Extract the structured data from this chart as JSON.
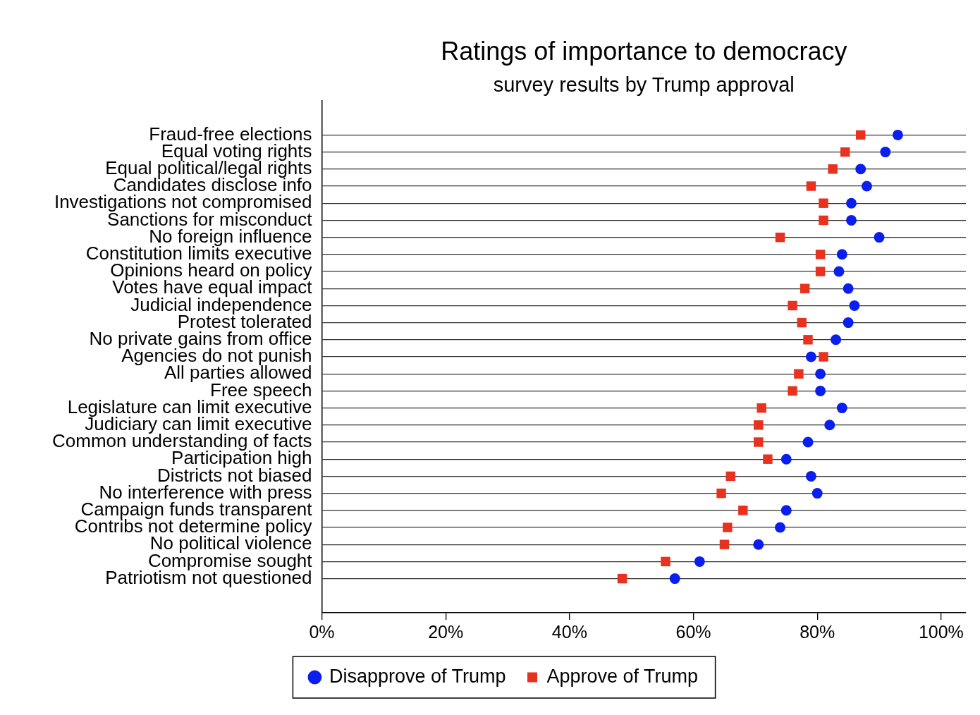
{
  "chart_data": {
    "type": "scatter",
    "title": "Ratings of importance to democracy",
    "subtitle": "survey results by Trump approval",
    "categories": [
      "Fraud-free elections",
      "Equal voting rights",
      "Equal political/legal rights",
      "Candidates disclose info",
      "Investigations not compromised",
      "Sanctions for misconduct",
      "No foreign influence",
      "Constitution limits executive",
      "Opinions heard on policy",
      "Votes have equal impact",
      "Judicial independence",
      "Protest tolerated",
      "No private gains from office",
      "Agencies do not punish",
      "All parties allowed",
      "Free speech",
      "Legislature can limit executive",
      "Judiciary can limit executive",
      "Common understanding of facts",
      "Participation high",
      "Districts not biased",
      "No interference with press",
      "Campaign funds transparent",
      "Contribs not determine policy",
      "No political violence",
      "Compromise sought",
      "Patriotism not questioned"
    ],
    "orientation": "horizontal",
    "series": [
      {
        "name": "Disapprove of Trump",
        "color": "#0a1ef0",
        "marker": "circle",
        "values": [
          93,
          91,
          87,
          88,
          85.5,
          85.5,
          90,
          84,
          83.5,
          85,
          86,
          85,
          83,
          79,
          80.5,
          80.5,
          84,
          82,
          78.5,
          75,
          79,
          80,
          75,
          74,
          70.5,
          61,
          57
        ]
      },
      {
        "name": "Approve of Trump",
        "color": "#e8321f",
        "marker": "square",
        "values": [
          87,
          84.5,
          82.5,
          79,
          81,
          81,
          74,
          80.5,
          80.5,
          78,
          76,
          77.5,
          78.5,
          81,
          77,
          76,
          71,
          70.5,
          70.5,
          72,
          66,
          64.5,
          68,
          65.5,
          65,
          55.5,
          48.5
        ]
      }
    ],
    "xlim": [
      0,
      104
    ],
    "xticks": [
      {
        "value": 0,
        "label": "0%"
      },
      {
        "value": 20,
        "label": "20%"
      },
      {
        "value": 40,
        "label": "40%"
      },
      {
        "value": 60,
        "label": "60%"
      },
      {
        "value": 80,
        "label": "80%"
      },
      {
        "value": 100,
        "label": "100%"
      }
    ],
    "grid": "y",
    "legend": "bottom"
  }
}
